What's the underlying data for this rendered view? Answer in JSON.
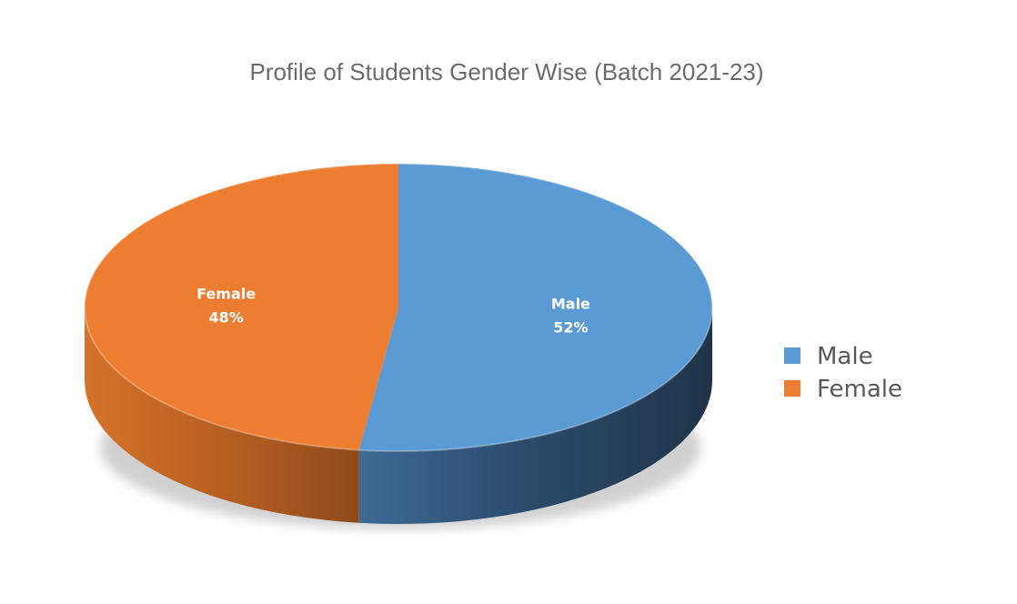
{
  "chart_data": {
    "type": "pie",
    "title": "Profile of Students Gender Wise (Batch 2021-23)",
    "categories": [
      "Male",
      "Female"
    ],
    "values": [
      52,
      48
    ],
    "unit": "%",
    "data_labels": [
      {
        "name": "Male",
        "value": "52%"
      },
      {
        "name": "Female",
        "value": "48%"
      }
    ],
    "legend": {
      "placement": "right",
      "entries": [
        "Male",
        "Female"
      ]
    },
    "style": "3d"
  },
  "colors": {
    "male": "#5b9bd5",
    "male_side_dark": "#22384f",
    "male_side_light": "#3b6794",
    "female": "#ed7d31",
    "female_side_dark": "#8a4718",
    "female_side_light": "#d26f2b",
    "title": "#6b6b6b",
    "legend_text": "#595959",
    "label_text": "#ffffff"
  }
}
